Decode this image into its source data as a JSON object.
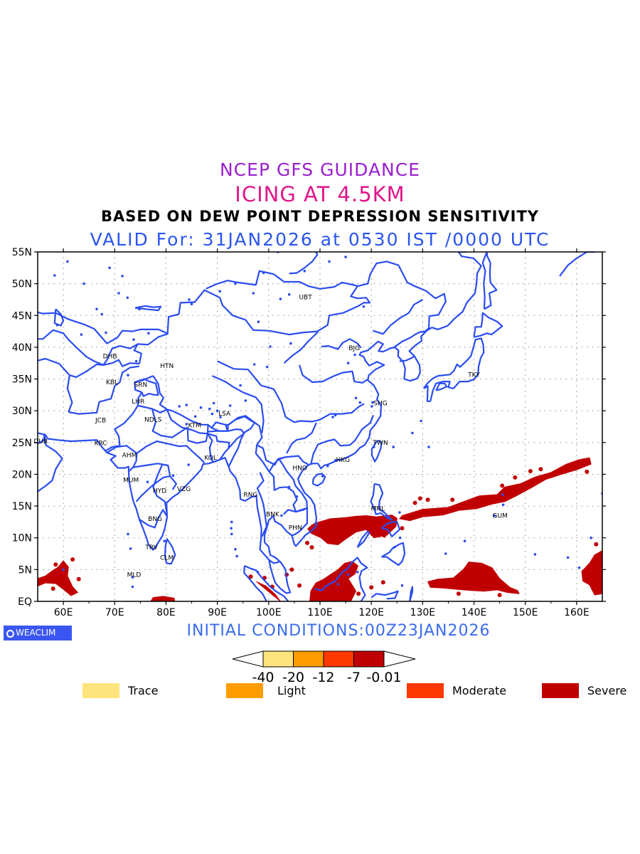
{
  "titles": {
    "line1": "NCEP GFS GUIDANCE",
    "line2": "ICING AT 4.5KM",
    "line3": "BASED ON DEW POINT DEPRESSION SENSITIVITY",
    "line4": "VALID For: 31JAN2026 at 0530 IST /0000 UTC"
  },
  "map": {
    "lon_range": [
      55,
      165
    ],
    "lat_range": [
      0,
      55
    ],
    "lat_ticks": [
      "EQ",
      "5N",
      "10N",
      "15N",
      "20N",
      "25N",
      "30N",
      "35N",
      "40N",
      "45N",
      "50N",
      "55N"
    ],
    "lon_ticks": [
      "60E",
      "70E",
      "80E",
      "90E",
      "100E",
      "110E",
      "120E",
      "130E",
      "140E",
      "150E",
      "160E"
    ],
    "coastline_color": "#2a4cf0",
    "grid": true,
    "stations": [
      {
        "code": "UBT",
        "lon": 106.9,
        "lat": 47.9
      },
      {
        "code": "BJG",
        "lon": 116.4,
        "lat": 39.9
      },
      {
        "code": "TKY",
        "lon": 139.7,
        "lat": 35.7
      },
      {
        "code": "SHG",
        "lon": 121.5,
        "lat": 31.2
      },
      {
        "code": "TWN",
        "lon": 121.5,
        "lat": 25.0
      },
      {
        "code": "HKG",
        "lon": 114.2,
        "lat": 22.3
      },
      {
        "code": "HNO",
        "lon": 105.8,
        "lat": 21.0
      },
      {
        "code": "MNL",
        "lon": 121.0,
        "lat": 14.6
      },
      {
        "code": "GUM",
        "lon": 144.8,
        "lat": 13.5
      },
      {
        "code": "BNK",
        "lon": 100.5,
        "lat": 13.7
      },
      {
        "code": "PHN",
        "lon": 104.9,
        "lat": 11.6
      },
      {
        "code": "RNG",
        "lon": 96.2,
        "lat": 16.8
      },
      {
        "code": "DHB",
        "lon": 68.8,
        "lat": 38.6
      },
      {
        "code": "HTN",
        "lon": 79.9,
        "lat": 37.1
      },
      {
        "code": "KBL",
        "lon": 69.2,
        "lat": 34.5
      },
      {
        "code": "SRN",
        "lon": 74.8,
        "lat": 34.1
      },
      {
        "code": "LHR",
        "lon": 74.3,
        "lat": 31.5
      },
      {
        "code": "LSA",
        "lon": 91.1,
        "lat": 29.6
      },
      {
        "code": "JCB",
        "lon": 67.0,
        "lat": 28.5
      },
      {
        "code": "NDLS",
        "lon": 77.2,
        "lat": 28.6
      },
      {
        "code": "KTM",
        "lon": 85.3,
        "lat": 27.7
      },
      {
        "code": "DUB",
        "lon": 55.3,
        "lat": 25.2
      },
      {
        "code": "KRC",
        "lon": 67.0,
        "lat": 24.9
      },
      {
        "code": "AHM",
        "lon": 72.6,
        "lat": 23.0
      },
      {
        "code": "KOL",
        "lon": 88.4,
        "lat": 22.6
      },
      {
        "code": "MUM",
        "lon": 72.9,
        "lat": 19.1
      },
      {
        "code": "HYD",
        "lon": 78.5,
        "lat": 17.4
      },
      {
        "code": "VZG",
        "lon": 83.2,
        "lat": 17.7
      },
      {
        "code": "BNG",
        "lon": 77.6,
        "lat": 13.0
      },
      {
        "code": "TRV",
        "lon": 76.9,
        "lat": 8.5
      },
      {
        "code": "CLM",
        "lon": 79.9,
        "lat": 6.9
      },
      {
        "code": "MLD",
        "lon": 73.5,
        "lat": 4.2
      }
    ]
  },
  "initial_conditions": "INITIAL CONDITIONS:00Z23JAN2026",
  "colorbar": {
    "colors": [
      "#fee47c",
      "#ff9c00",
      "#ff3800",
      "#c00000"
    ],
    "labels": [
      "-40",
      "-20",
      "-12",
      "-7",
      "-0.01"
    ]
  },
  "legend": [
    {
      "label": "Trace",
      "color": "#fee47c"
    },
    {
      "label": "Light",
      "color": "#ff9c00"
    },
    {
      "label": "Moderate",
      "color": "#ff3800"
    },
    {
      "label": "Severe",
      "color": "#c00000"
    }
  ],
  "logo": "WEACLIM",
  "icing_color": "#c00000"
}
